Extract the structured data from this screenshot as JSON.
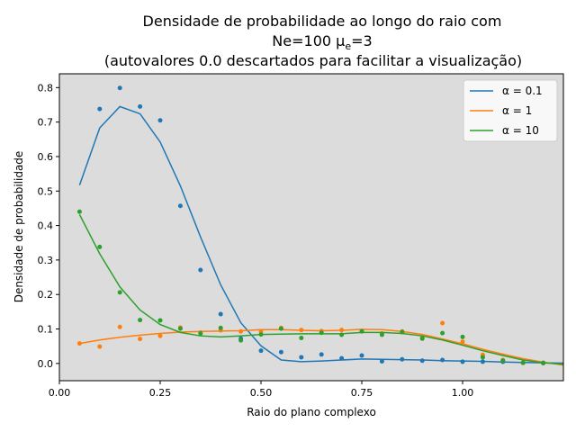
{
  "chart_data": {
    "type": "line",
    "title_lines": [
      "Densidade de probabilidade ao longo do raio com",
      "Ne=100 μ",
      "e",
      "=3",
      "(autovalores 0.0 descartados para facilitar a visualização)"
    ],
    "xlabel": "Raio do plano complexo",
    "ylabel": "Densidade de probabilidade",
    "xlim": [
      0.0,
      1.25
    ],
    "ylim": [
      -0.05,
      0.84
    ],
    "xticks": [
      0.0,
      0.25,
      0.5,
      0.75,
      1.0
    ],
    "xtick_labels": [
      "0.00",
      "0.25",
      "0.50",
      "0.75",
      "1.00"
    ],
    "yticks": [
      0.0,
      0.1,
      0.2,
      0.3,
      0.4,
      0.5,
      0.6,
      0.7,
      0.8
    ],
    "ytick_labels": [
      "0.0",
      "0.1",
      "0.2",
      "0.3",
      "0.4",
      "0.5",
      "0.6",
      "0.7",
      "0.8"
    ],
    "background": "#dcdcdc",
    "grid": false,
    "legend_position": "top-right",
    "series": [
      {
        "name": "α = 0.1",
        "color": "#1f77b4",
        "line": [
          [
            0.05,
            0.517
          ],
          [
            0.1,
            0.683
          ],
          [
            0.15,
            0.745
          ],
          [
            0.2,
            0.724
          ],
          [
            0.25,
            0.642
          ],
          [
            0.3,
            0.515
          ],
          [
            0.35,
            0.367
          ],
          [
            0.4,
            0.228
          ],
          [
            0.45,
            0.118
          ],
          [
            0.5,
            0.051
          ],
          [
            0.55,
            0.01
          ],
          [
            0.6,
            0.005
          ],
          [
            0.65,
            0.007
          ],
          [
            0.7,
            0.01
          ],
          [
            0.75,
            0.013
          ],
          [
            0.8,
            0.012
          ],
          [
            0.85,
            0.011
          ],
          [
            0.9,
            0.01
          ],
          [
            0.95,
            0.008
          ],
          [
            1.0,
            0.007
          ],
          [
            1.05,
            0.006
          ],
          [
            1.1,
            0.004
          ],
          [
            1.15,
            0.003
          ],
          [
            1.2,
            0.002
          ],
          [
            1.25,
            0.001
          ]
        ],
        "points": [
          [
            0.1,
            0.738
          ],
          [
            0.15,
            0.799
          ],
          [
            0.2,
            0.745
          ],
          [
            0.25,
            0.705
          ],
          [
            0.3,
            0.457
          ],
          [
            0.35,
            0.271
          ],
          [
            0.4,
            0.143
          ],
          [
            0.45,
            0.072
          ],
          [
            0.5,
            0.037
          ],
          [
            0.55,
            0.033
          ],
          [
            0.6,
            0.018
          ],
          [
            0.65,
            0.026
          ],
          [
            0.7,
            0.015
          ],
          [
            0.75,
            0.023
          ],
          [
            0.8,
            0.006
          ],
          [
            0.85,
            0.012
          ],
          [
            0.9,
            0.008
          ],
          [
            0.95,
            0.01
          ],
          [
            1.0,
            0.005
          ],
          [
            1.05,
            0.005
          ],
          [
            1.1,
            0.005
          ],
          [
            1.15,
            0.002
          ],
          [
            1.2,
            0.002
          ]
        ]
      },
      {
        "name": "α = 1",
        "color": "#ff7f0e",
        "line": [
          [
            0.05,
            0.058
          ],
          [
            0.1,
            0.068
          ],
          [
            0.15,
            0.076
          ],
          [
            0.2,
            0.082
          ],
          [
            0.25,
            0.087
          ],
          [
            0.3,
            0.091
          ],
          [
            0.35,
            0.093
          ],
          [
            0.4,
            0.094
          ],
          [
            0.45,
            0.095
          ],
          [
            0.5,
            0.098
          ],
          [
            0.55,
            0.098
          ],
          [
            0.6,
            0.096
          ],
          [
            0.65,
            0.095
          ],
          [
            0.7,
            0.096
          ],
          [
            0.75,
            0.099
          ],
          [
            0.8,
            0.098
          ],
          [
            0.85,
            0.093
          ],
          [
            0.9,
            0.084
          ],
          [
            0.95,
            0.071
          ],
          [
            1.0,
            0.057
          ],
          [
            1.05,
            0.041
          ],
          [
            1.1,
            0.027
          ],
          [
            1.15,
            0.014
          ],
          [
            1.2,
            0.004
          ],
          [
            1.25,
            -0.005
          ]
        ],
        "points": [
          [
            0.05,
            0.058
          ],
          [
            0.1,
            0.049
          ],
          [
            0.15,
            0.106
          ],
          [
            0.2,
            0.071
          ],
          [
            0.25,
            0.08
          ],
          [
            0.3,
            0.104
          ],
          [
            0.35,
            0.09
          ],
          [
            0.4,
            0.096
          ],
          [
            0.45,
            0.093
          ],
          [
            0.5,
            0.093
          ],
          [
            0.55,
            0.103
          ],
          [
            0.6,
            0.097
          ],
          [
            0.65,
            0.094
          ],
          [
            0.7,
            0.097
          ],
          [
            0.75,
            0.094
          ],
          [
            0.8,
            0.087
          ],
          [
            0.85,
            0.093
          ],
          [
            0.9,
            0.075
          ],
          [
            0.95,
            0.117
          ],
          [
            1.0,
            0.063
          ],
          [
            1.05,
            0.025
          ],
          [
            1.1,
            0.01
          ],
          [
            1.15,
            0.002
          ],
          [
            1.2,
            0.001
          ]
        ]
      },
      {
        "name": "α = 10",
        "color": "#2ca02c",
        "line": [
          [
            0.05,
            0.432
          ],
          [
            0.1,
            0.318
          ],
          [
            0.15,
            0.222
          ],
          [
            0.2,
            0.155
          ],
          [
            0.25,
            0.113
          ],
          [
            0.3,
            0.09
          ],
          [
            0.35,
            0.08
          ],
          [
            0.4,
            0.077
          ],
          [
            0.45,
            0.08
          ],
          [
            0.5,
            0.084
          ],
          [
            0.55,
            0.085
          ],
          [
            0.6,
            0.086
          ],
          [
            0.65,
            0.086
          ],
          [
            0.7,
            0.086
          ],
          [
            0.75,
            0.09
          ],
          [
            0.8,
            0.09
          ],
          [
            0.85,
            0.087
          ],
          [
            0.9,
            0.08
          ],
          [
            0.95,
            0.068
          ],
          [
            1.0,
            0.053
          ],
          [
            1.05,
            0.037
          ],
          [
            1.1,
            0.023
          ],
          [
            1.15,
            0.01
          ],
          [
            1.2,
            0.002
          ],
          [
            1.25,
            -0.002
          ]
        ],
        "points": [
          [
            0.05,
            0.44
          ],
          [
            0.1,
            0.338
          ],
          [
            0.15,
            0.206
          ],
          [
            0.2,
            0.126
          ],
          [
            0.25,
            0.125
          ],
          [
            0.3,
            0.101
          ],
          [
            0.35,
            0.087
          ],
          [
            0.4,
            0.103
          ],
          [
            0.45,
            0.067
          ],
          [
            0.5,
            0.084
          ],
          [
            0.55,
            0.101
          ],
          [
            0.6,
            0.074
          ],
          [
            0.65,
            0.089
          ],
          [
            0.7,
            0.083
          ],
          [
            0.75,
            0.093
          ],
          [
            0.8,
            0.083
          ],
          [
            0.85,
            0.091
          ],
          [
            0.9,
            0.072
          ],
          [
            0.95,
            0.088
          ],
          [
            1.0,
            0.077
          ],
          [
            1.05,
            0.018
          ],
          [
            1.1,
            0.008
          ],
          [
            1.15,
            0.002
          ],
          [
            1.2,
            0.001
          ]
        ]
      }
    ]
  }
}
